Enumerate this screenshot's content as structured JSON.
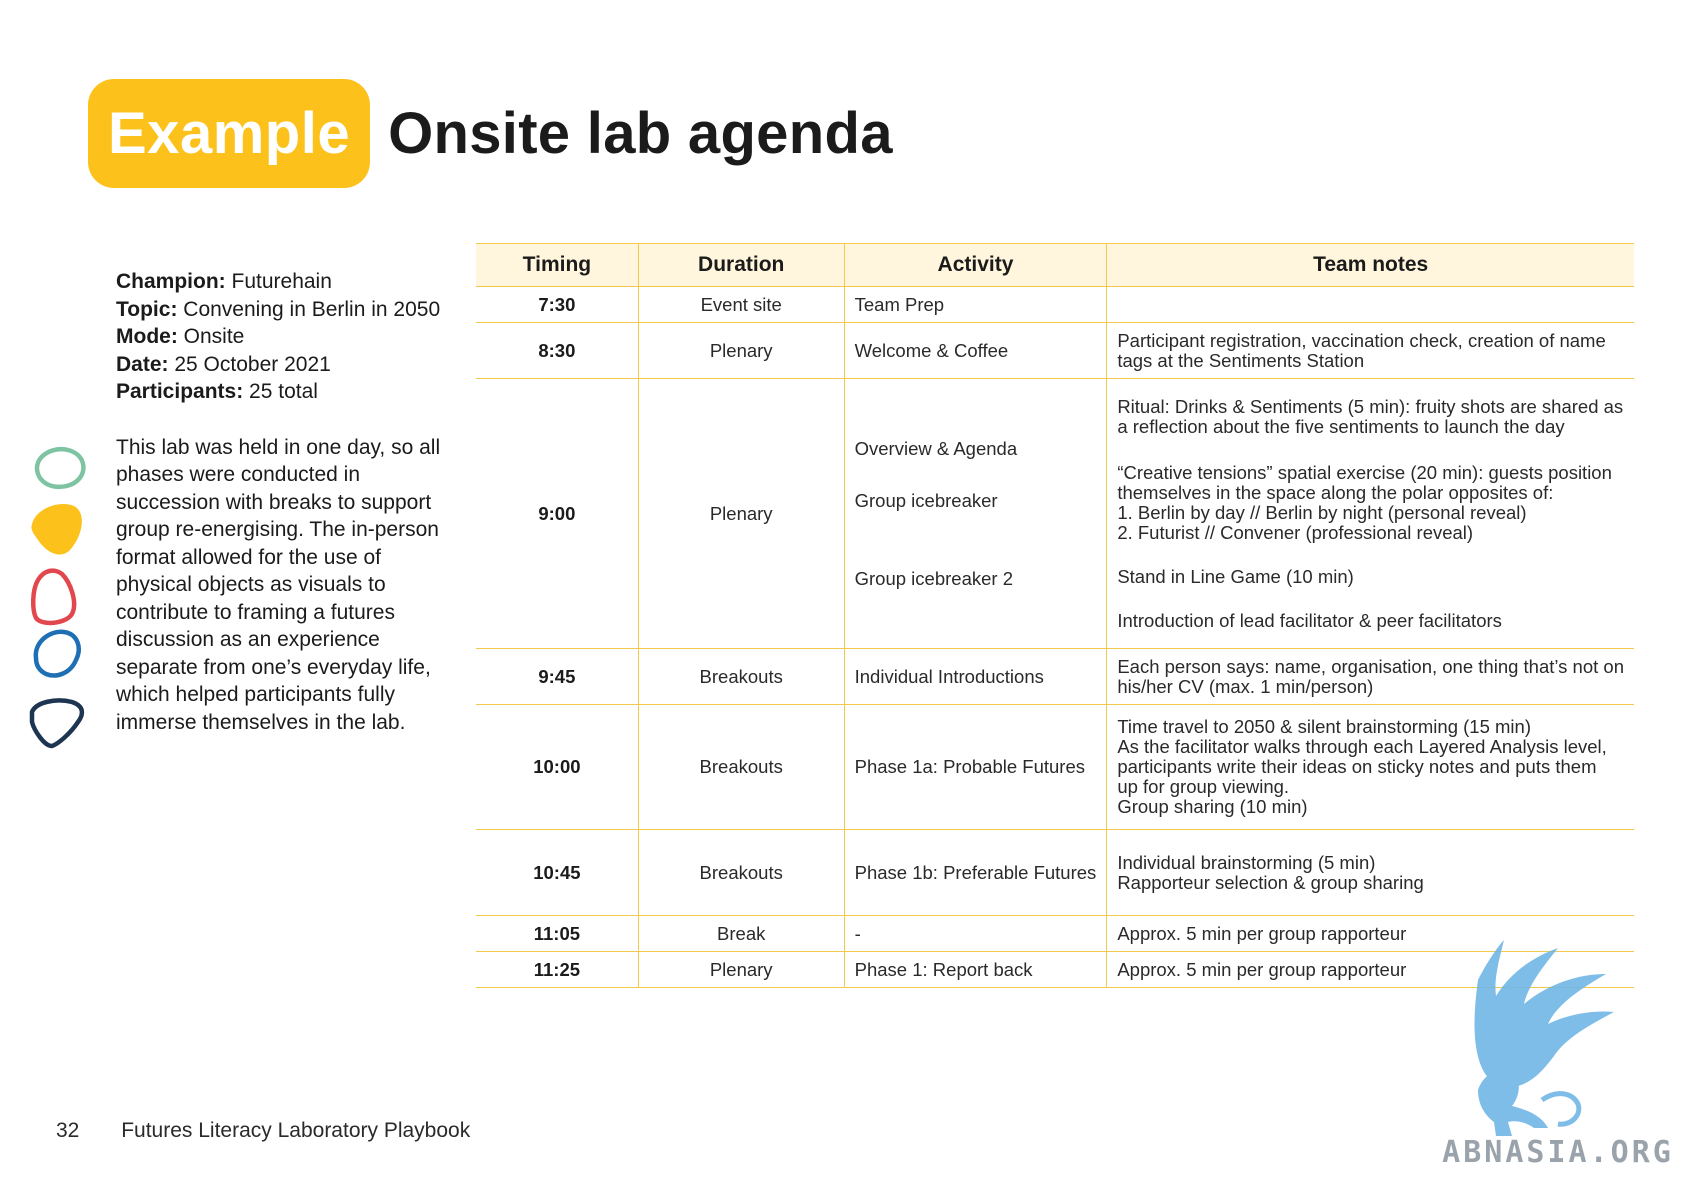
{
  "header": {
    "badge": "Example",
    "title": "Onsite lab agenda"
  },
  "info": {
    "champion_label": "Champion:",
    "champion": "Futurehain",
    "topic_label": "Topic:",
    "topic": "Convening in Berlin in 2050",
    "mode_label": "Mode:",
    "mode": "Onsite",
    "date_label": "Date:",
    "date": "25 October 2021",
    "participants_label": "Participants:",
    "participants": "25 total",
    "description": "This lab was held in one day, so all phases were conducted in succession with breaks to support group re-energising. The in-person format allowed for the use of physical objects as visuals to contribute to framing a futures discussion as an experience separate from one’s everyday life, which helped participants fully immerse themselves in the lab."
  },
  "table": {
    "headers": [
      "Timing",
      "Duration",
      "Activity",
      "Team notes"
    ],
    "rows": [
      {
        "time": "7:30",
        "duration": "Event site",
        "activity": [
          "Team Prep"
        ],
        "notes": []
      },
      {
        "time": "8:30",
        "duration": "Plenary",
        "activity": [
          "Welcome & Coffee"
        ],
        "notes": [
          "Participant registration, vaccination check, creation of name",
          "tags at the Sentiments Station"
        ]
      },
      {
        "time": "9:00",
        "duration": "Plenary",
        "activity": [
          "Overview & Agenda",
          "Group icebreaker",
          "Group icebreaker 2"
        ],
        "notes": [
          "Ritual: Drinks & Sentiments (5 min): fruity shots are shared as",
          "a reflection about the five sentiments to launch the day",
          "“Creative tensions” spatial exercise (20 min): guests position",
          "themselves in the space along the polar opposites of:",
          "1. Berlin by day // Berlin by night (personal reveal)",
          "2. Futurist // Convener (professional reveal)",
          "Stand in Line Game (10 min)",
          "Introduction of lead facilitator & peer facilitators"
        ]
      },
      {
        "time": "9:45",
        "duration": "Breakouts",
        "activity": [
          "Individual Introductions"
        ],
        "notes": [
          "Each person says: name, organisation, one thing that’s not on",
          "his/her CV (max. 1 min/person)"
        ]
      },
      {
        "time": "10:00",
        "duration": "Breakouts",
        "activity": [
          "Phase 1a: Probable Futures"
        ],
        "notes": [
          "Time travel to 2050 & silent brainstorming (15 min)",
          "As the facilitator walks through each Layered Analysis level,",
          "participants write their ideas on sticky notes and puts them",
          "up for group viewing.",
          "Group sharing (10 min)"
        ]
      },
      {
        "time": "10:45",
        "duration": "Breakouts",
        "activity": [
          "Phase 1b: Preferable Futures"
        ],
        "notes": [
          "Individual brainstorming (5 min)",
          "Rapporteur selection & group sharing"
        ]
      },
      {
        "time": "11:05",
        "duration": "Break",
        "activity": [
          "-"
        ],
        "notes": [
          "Approx. 5 min per group rapporteur"
        ]
      },
      {
        "time": "11:25",
        "duration": "Plenary",
        "activity": [
          "Phase 1: Report back"
        ],
        "notes": [
          "Approx. 5 min per group rapporteur"
        ]
      }
    ]
  },
  "footer": {
    "page_number": "32",
    "title": "Futures Literacy Laboratory Playbook"
  },
  "watermark": {
    "text": "ABNASIA.ORG",
    "icon": "griffin-logo-icon"
  },
  "colors": {
    "accent": "#fcc21b",
    "header_fill": "#fff6dd",
    "rule": "#f2c94c",
    "shape_green": "#7fc4a2",
    "shape_yellow": "#fcc21b",
    "shape_red": "#e2474d",
    "shape_blue": "#1f6fb5",
    "shape_navy": "#1e3552",
    "logo_blue": "#6fb6e6"
  }
}
